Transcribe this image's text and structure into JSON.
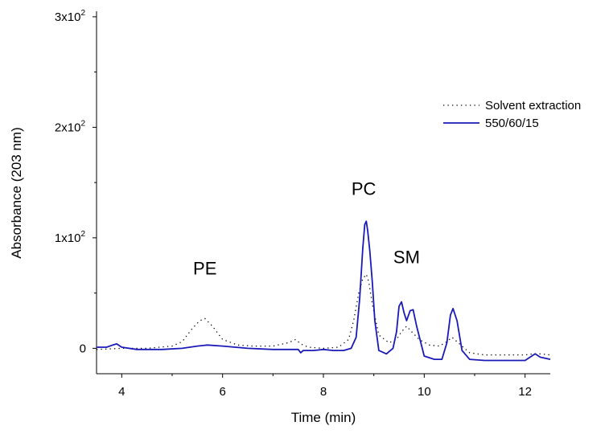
{
  "chart_data": {
    "type": "line",
    "title": "",
    "xlabel": "Time (min)",
    "ylabel": "Absorbance (203 nm)",
    "xlim": [
      3.5,
      12.5
    ],
    "ylim": [
      -23,
      305
    ],
    "x_ticks": [
      {
        "value": 4,
        "label": "4"
      },
      {
        "value": 6,
        "label": "6"
      },
      {
        "value": 8,
        "label": "8"
      },
      {
        "value": 10,
        "label": "10"
      },
      {
        "value": 12,
        "label": "12"
      }
    ],
    "y_ticks": [
      {
        "value": 0,
        "label": "0"
      },
      {
        "value": 100,
        "label": "1x10",
        "exp": "2"
      },
      {
        "value": 200,
        "label": "2x10",
        "exp": "2"
      },
      {
        "value": 300,
        "label": "3x10",
        "exp": "2"
      }
    ],
    "grid": false,
    "legend_position": "top-right",
    "annotations": [
      {
        "text": "PE",
        "x": 5.65,
        "y": 67
      },
      {
        "text": "PC",
        "x": 8.8,
        "y": 139
      },
      {
        "text": "SM",
        "x": 9.65,
        "y": 77
      }
    ],
    "series": [
      {
        "name": "Solvent extraction",
        "style": "dotted",
        "color": "#000000",
        "x": [
          3.5,
          4.0,
          4.5,
          5.0,
          5.2,
          5.4,
          5.55,
          5.65,
          5.8,
          6.0,
          6.3,
          6.6,
          7.0,
          7.3,
          7.45,
          7.55,
          7.7,
          8.0,
          8.3,
          8.5,
          8.6,
          8.7,
          8.78,
          8.85,
          8.9,
          8.97,
          9.1,
          9.3,
          9.45,
          9.55,
          9.65,
          9.75,
          9.9,
          10.1,
          10.3,
          10.45,
          10.55,
          10.7,
          10.9,
          11.2,
          11.6,
          12.0,
          12.15,
          12.3,
          12.5
        ],
        "y": [
          -1,
          0,
          0,
          2,
          6,
          18,
          25,
          27,
          20,
          8,
          3,
          2,
          2,
          5,
          8,
          4,
          1,
          0,
          1,
          8,
          25,
          50,
          63,
          67,
          60,
          40,
          12,
          5,
          8,
          15,
          20,
          15,
          8,
          3,
          2,
          6,
          10,
          4,
          -4,
          -6,
          -6,
          -6,
          -5,
          -5,
          -6
        ]
      },
      {
        "name": "550/60/15",
        "style": "solid",
        "color": "#1a1ab8",
        "x": [
          3.5,
          3.7,
          3.82,
          3.9,
          4.0,
          4.3,
          4.8,
          5.2,
          5.5,
          5.7,
          6.0,
          6.5,
          7.0,
          7.3,
          7.5,
          7.55,
          7.6,
          7.8,
          8.0,
          8.2,
          8.4,
          8.55,
          8.65,
          8.72,
          8.78,
          8.82,
          8.85,
          8.88,
          8.92,
          8.97,
          9.02,
          9.1,
          9.25,
          9.38,
          9.45,
          9.5,
          9.55,
          9.6,
          9.65,
          9.72,
          9.78,
          9.85,
          10.0,
          10.2,
          10.35,
          10.45,
          10.52,
          10.57,
          10.65,
          10.75,
          10.9,
          11.2,
          11.6,
          12.0,
          12.1,
          12.2,
          12.3,
          12.5
        ],
        "y": [
          1,
          1,
          3,
          4,
          1,
          -1,
          -1,
          0,
          2,
          3,
          2,
          0,
          -1,
          -1,
          -1,
          -4,
          -2,
          -2,
          -1,
          -2,
          -2,
          0,
          10,
          45,
          90,
          112,
          115,
          106,
          88,
          60,
          25,
          -2,
          -5,
          0,
          15,
          38,
          42,
          32,
          25,
          34,
          35,
          20,
          -7,
          -10,
          -10,
          5,
          30,
          36,
          25,
          -2,
          -10,
          -11,
          -11,
          -11,
          -8,
          -5,
          -8,
          -10
        ]
      }
    ]
  }
}
